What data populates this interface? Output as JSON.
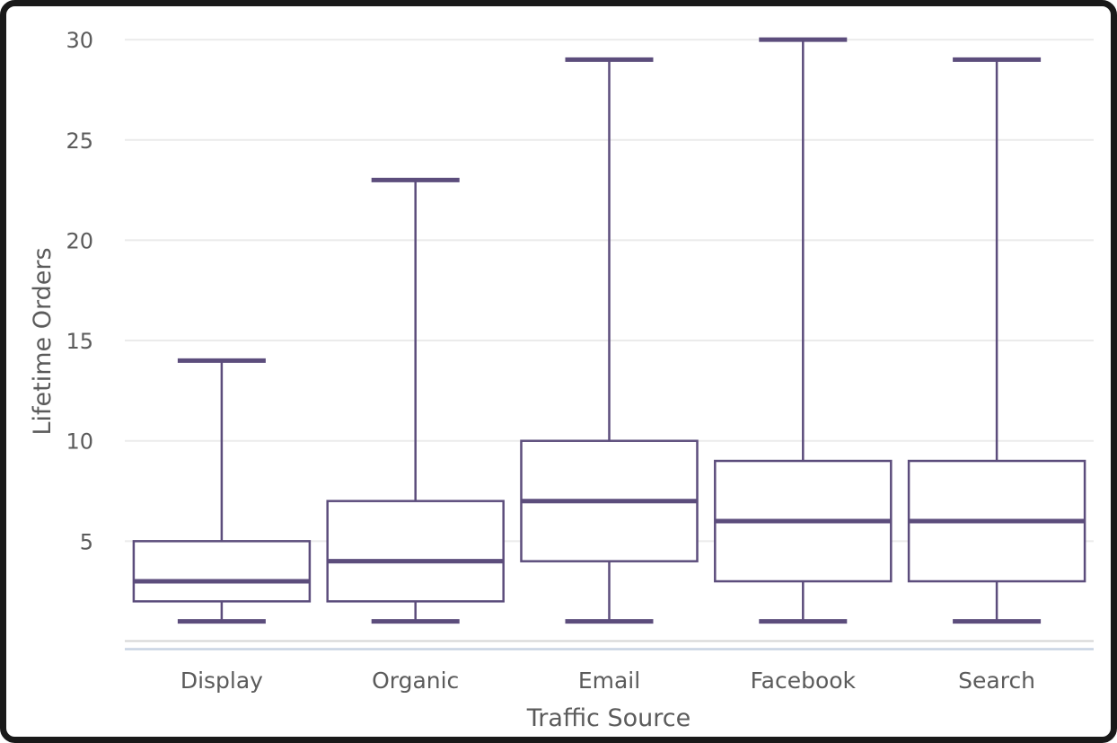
{
  "window": {
    "frame_color": "#191919",
    "background": "#ffffff"
  },
  "chart_data": {
    "type": "box",
    "title": "",
    "xlabel": "Traffic Source",
    "ylabel": "Lifetime Orders",
    "categories": [
      "Display",
      "Organic",
      "Email",
      "Facebook",
      "Search"
    ],
    "series": [
      {
        "name": "Display",
        "min": 1,
        "q1": 2,
        "median": 3,
        "q3": 5,
        "max": 14
      },
      {
        "name": "Organic",
        "min": 1,
        "q1": 2,
        "median": 4,
        "q3": 7,
        "max": 23
      },
      {
        "name": "Email",
        "min": 1,
        "q1": 4,
        "median": 7,
        "q3": 10,
        "max": 29
      },
      {
        "name": "Facebook",
        "min": 1,
        "q1": 3,
        "median": 6,
        "q3": 9,
        "max": 30
      },
      {
        "name": "Search",
        "min": 1,
        "q1": 3,
        "median": 6,
        "q3": 9,
        "max": 29
      }
    ],
    "yticks": [
      5,
      10,
      15,
      20,
      25,
      30
    ],
    "ylim": [
      0,
      31
    ],
    "grid": true,
    "legend": false,
    "colors": {
      "box_stroke": "#5c4d7c",
      "box_fill": "#ffffff",
      "gridline": "#ebebeb",
      "axis_line": "#d4d4d4",
      "zero_line": "#c8d4e3",
      "text": "#5b5b5b"
    }
  }
}
